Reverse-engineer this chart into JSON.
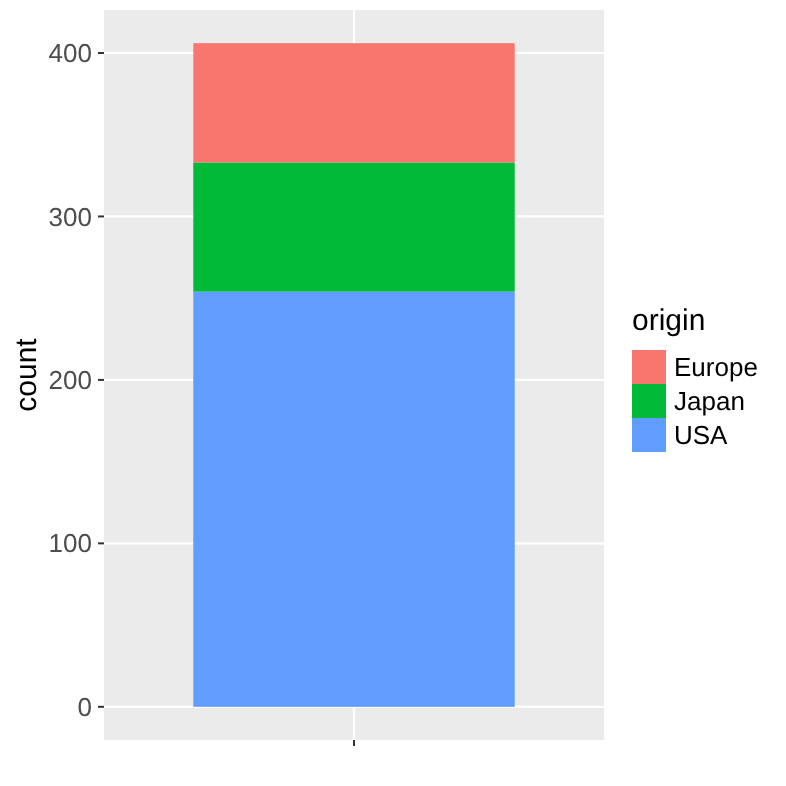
{
  "chart_data": {
    "type": "bar",
    "categories": [
      null
    ],
    "stacked": true,
    "ylabel": "count",
    "legend_title": "origin",
    "legend": "right",
    "grid": true,
    "ylim": [
      -20.3,
      426.3
    ],
    "yticks": [
      0,
      100,
      200,
      300,
      400
    ],
    "series": [
      {
        "name": "USA",
        "color": "#619cff",
        "values": [
          254
        ]
      },
      {
        "name": "Japan",
        "color": "#00ba38",
        "values": [
          79
        ]
      },
      {
        "name": "Europe",
        "color": "#f8766d",
        "values": [
          73
        ]
      }
    ]
  }
}
